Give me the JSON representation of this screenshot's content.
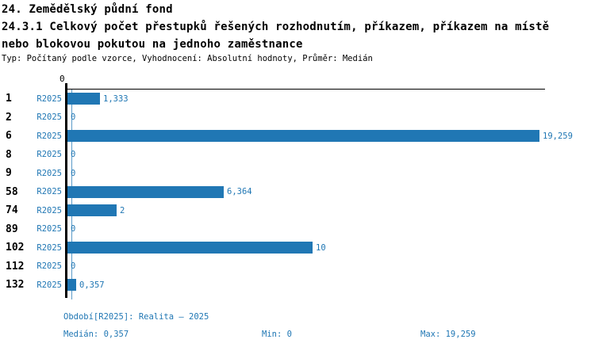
{
  "header": {
    "title_line1": "24. Zemědělský půdní fond",
    "title_line2": "24.3.1 Celkový počet přestupků řešených rozhodnutím, příkazem, příkazem na místě",
    "title_line3": "nebo blokovou pokutou na jednoho zaměstnance",
    "subtitle": "Typ: Počítaný podle vzorce, Vyhodnocení: Absolutní hodnoty, Průměr: Medián"
  },
  "chart_data": {
    "type": "bar",
    "orientation": "horizontal",
    "title": "24.3.1 Celkový počet přestupků řešených rozhodnutím, příkazem, příkazem na místě nebo blokovou pokutou na jednoho zaměstnance",
    "categories": [
      "1",
      "2",
      "6",
      "8",
      "9",
      "58",
      "74",
      "89",
      "102",
      "112",
      "132"
    ],
    "series_label": "R2025",
    "values": [
      1.333,
      0,
      19.259,
      0,
      0,
      6.364,
      2,
      0,
      10,
      0,
      0.357
    ],
    "value_labels": [
      "1,333",
      "0",
      "19,259",
      "0",
      "0",
      "6,364",
      "2",
      "0",
      "10",
      "0",
      "0,357"
    ],
    "axis_tick_zero": "0",
    "xlim": [
      0,
      19.259
    ],
    "median_value": 0.357,
    "grid": "off",
    "legend": "none",
    "bar_color": "#2077b4",
    "text_color": "#2077b4",
    "median_line_color": "#5b9bc8",
    "axis_color": "#000000"
  },
  "footer": {
    "period": "Období[R2025]: Realita – 2025",
    "median": "Medián: 0,357",
    "min": "Min: 0",
    "max": "Max: 19,259"
  }
}
